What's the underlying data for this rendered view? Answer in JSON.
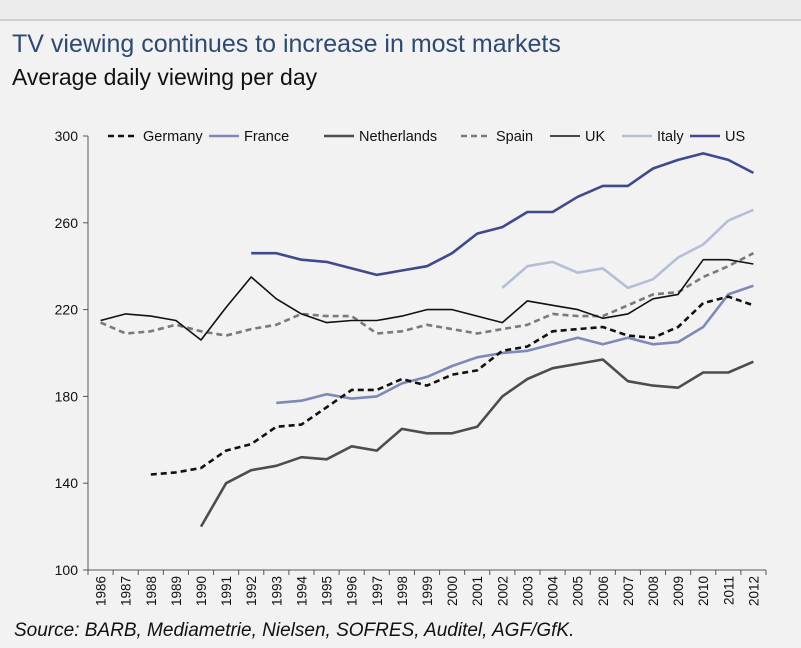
{
  "header": {
    "title": "TV viewing continues to increase in most markets",
    "subtitle": "Average daily viewing per day"
  },
  "footer": {
    "source": "Source:  BARB, Mediametrie, Nielsen, SOFRES, Auditel, AGF/GfK."
  },
  "chart_data": {
    "type": "line",
    "title": "TV viewing continues to increase in most markets",
    "subtitle": "Average daily viewing per day",
    "xlabel": "",
    "ylabel": "",
    "ylim": [
      100,
      300
    ],
    "yticks": [
      100,
      140,
      180,
      220,
      260,
      300
    ],
    "grid": false,
    "legend": "top",
    "x": [
      "1986",
      "1987",
      "1988",
      "1989",
      "1990",
      "1991",
      "1992",
      "1993",
      "1994",
      "1995",
      "1996",
      "1997",
      "1998",
      "1999",
      "2000",
      "2001",
      "2002",
      "2003",
      "2004",
      "2005",
      "2006",
      "2007",
      "2008",
      "2009",
      "2010",
      "2011",
      "2012"
    ],
    "series": [
      {
        "name": "Germany",
        "color": "#111111",
        "dash": "dashed",
        "values": [
          null,
          null,
          144,
          145,
          147,
          155,
          158,
          166,
          167,
          175,
          183,
          183,
          188,
          185,
          190,
          192,
          201,
          203,
          210,
          211,
          212,
          208,
          207,
          212,
          223,
          226,
          222
        ]
      },
      {
        "name": "France",
        "color": "#7b8ab8",
        "dash": "solid",
        "values": [
          null,
          null,
          null,
          null,
          null,
          null,
          null,
          177,
          178,
          181,
          179,
          180,
          186,
          189,
          194,
          198,
          200,
          201,
          204,
          207,
          204,
          207,
          204,
          205,
          212,
          227,
          231
        ]
      },
      {
        "name": "Netherlands",
        "color": "#4d4d4d",
        "dash": "solid",
        "values": [
          null,
          null,
          null,
          null,
          120,
          140,
          146,
          148,
          152,
          151,
          157,
          155,
          165,
          163,
          163,
          166,
          180,
          188,
          193,
          195,
          197,
          187,
          185,
          184,
          191,
          191,
          196
        ]
      },
      {
        "name": "Spain",
        "color": "#7a7a7a",
        "dash": "dashed",
        "values": [
          214,
          209,
          210,
          213,
          210,
          208,
          211,
          213,
          218,
          217,
          217,
          209,
          210,
          213,
          211,
          209,
          211,
          213,
          218,
          217,
          217,
          222,
          227,
          228,
          235,
          240,
          246
        ]
      },
      {
        "name": "UK",
        "color": "#111111",
        "dash": "solid",
        "values": [
          215,
          218,
          217,
          215,
          206,
          221,
          235,
          225,
          218,
          214,
          215,
          215,
          217,
          220,
          220,
          217,
          214,
          224,
          222,
          220,
          216,
          218,
          225,
          227,
          243,
          243,
          241
        ]
      },
      {
        "name": "Italy",
        "color": "#b4bfd6",
        "dash": "solid",
        "values": [
          null,
          null,
          null,
          null,
          null,
          null,
          null,
          null,
          null,
          null,
          null,
          null,
          null,
          null,
          null,
          null,
          230,
          240,
          242,
          237,
          239,
          230,
          234,
          244,
          250,
          261,
          266
        ]
      },
      {
        "name": "US",
        "color": "#3f4a8c",
        "dash": "solid",
        "values": [
          null,
          null,
          null,
          null,
          null,
          null,
          246,
          246,
          243,
          242,
          239,
          236,
          238,
          240,
          246,
          255,
          258,
          265,
          265,
          272,
          277,
          277,
          285,
          289,
          292,
          289,
          283
        ]
      }
    ]
  }
}
